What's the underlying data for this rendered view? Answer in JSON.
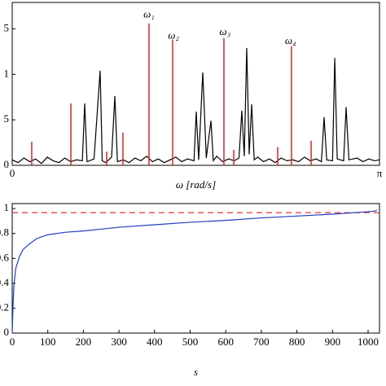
{
  "chart_data": [
    {
      "type": "line",
      "xlabel": "ω [rad/s]",
      "xlim": [
        0,
        3.14159
      ],
      "xticks": [
        0,
        {
          "value": 3.14159,
          "label": "π"
        }
      ],
      "ylim": [
        0,
        1.79
      ],
      "yticks": [
        0,
        {
          "value": 0.5,
          "label": "5"
        },
        1,
        {
          "value": 1.5,
          "label": "5"
        }
      ],
      "series": [
        {
          "style": "line",
          "color": "#000000",
          "x": [
            0,
            0.05,
            0.1,
            0.15,
            0.2,
            0.25,
            0.3,
            0.35,
            0.4,
            0.45,
            0.5,
            0.55,
            0.6,
            0.62,
            0.64,
            0.7,
            0.752,
            0.77,
            0.8,
            0.85,
            0.878,
            0.9,
            0.95,
            1.0,
            1.05,
            1.1,
            1.15,
            1.2,
            1.25,
            1.3,
            1.35,
            1.4,
            1.45,
            1.5,
            1.555,
            1.574,
            1.595,
            1.63,
            1.66,
            1.7,
            1.72,
            1.75,
            1.8,
            1.85,
            1.9,
            1.94,
            1.964,
            1.985,
            2.006,
            2.027,
            2.048,
            2.07,
            2.1,
            2.15,
            2.2,
            2.25,
            2.3,
            2.35,
            2.4,
            2.45,
            2.5,
            2.55,
            2.6,
            2.645,
            2.668,
            2.69,
            2.74,
            2.759,
            2.78,
            2.835,
            2.856,
            2.88,
            2.95,
            3.0,
            3.05,
            3.1,
            3.14
          ],
          "values": [
            0.06,
            0.03,
            0.08,
            0.04,
            0.07,
            0.02,
            0.09,
            0.05,
            0.03,
            0.08,
            0.04,
            0.06,
            0.05,
            0.68,
            0.04,
            0.07,
            1.04,
            0.05,
            0.03,
            0.09,
            0.76,
            0.04,
            0.06,
            0.03,
            0.08,
            0.05,
            0.1,
            0.04,
            0.07,
            0.03,
            0.06,
            0.09,
            0.04,
            0.07,
            0.05,
            0.59,
            0.06,
            1.02,
            0.08,
            0.49,
            0.05,
            0.1,
            0.04,
            0.07,
            0.05,
            0.08,
            0.6,
            0.1,
            1.29,
            0.12,
            0.67,
            0.06,
            0.09,
            0.04,
            0.07,
            0.03,
            0.08,
            0.05,
            0.06,
            0.04,
            0.09,
            0.05,
            0.07,
            0.04,
            0.53,
            0.06,
            0.05,
            1.18,
            0.07,
            0.05,
            0.64,
            0.06,
            0.08,
            0.04,
            0.07,
            0.05,
            0.06
          ]
        },
        {
          "style": "stem",
          "color": "#d62728",
          "x": [
            0.167,
            0.502,
            0.808,
            0.947,
            1.17,
            1.372,
            1.811,
            1.895,
            2.271,
            2.389,
            2.557
          ],
          "values": [
            0.26,
            0.68,
            0.15,
            0.36,
            1.56,
            1.38,
            1.4,
            0.17,
            0.2,
            1.31,
            0.27
          ]
        }
      ],
      "annotations": [
        {
          "text": "ω₁",
          "x": 1.17,
          "y": 1.65
        },
        {
          "text": "ω₂",
          "x": 1.38,
          "y": 1.42
        },
        {
          "text": "ω₃",
          "x": 1.82,
          "y": 1.46
        },
        {
          "text": "ω₄",
          "x": 2.38,
          "y": 1.36
        }
      ]
    },
    {
      "type": "line",
      "xlabel": "s",
      "xlim": [
        0,
        1032
      ],
      "xticks": [
        0,
        100,
        200,
        300,
        400,
        500,
        600,
        700,
        800,
        900,
        1000
      ],
      "ylim": [
        0,
        1.04
      ],
      "yticks": [
        0,
        0.2,
        0.4,
        0.6,
        0.8,
        1
      ],
      "reference_line": {
        "value": 0.967,
        "color": "#e8323c"
      },
      "series": [
        {
          "style": "line",
          "color": "#1f3fbf",
          "x": [
            0,
            2,
            5,
            10,
            20,
            30,
            50,
            70,
            100,
            150,
            200,
            300,
            400,
            500,
            600,
            700,
            800,
            900,
            1000,
            1020,
            1025
          ],
          "values": [
            0,
            0.2,
            0.39,
            0.52,
            0.61,
            0.67,
            0.72,
            0.76,
            0.79,
            0.81,
            0.82,
            0.85,
            0.87,
            0.89,
            0.905,
            0.925,
            0.94,
            0.955,
            0.975,
            0.98,
            0.99
          ]
        }
      ]
    }
  ]
}
